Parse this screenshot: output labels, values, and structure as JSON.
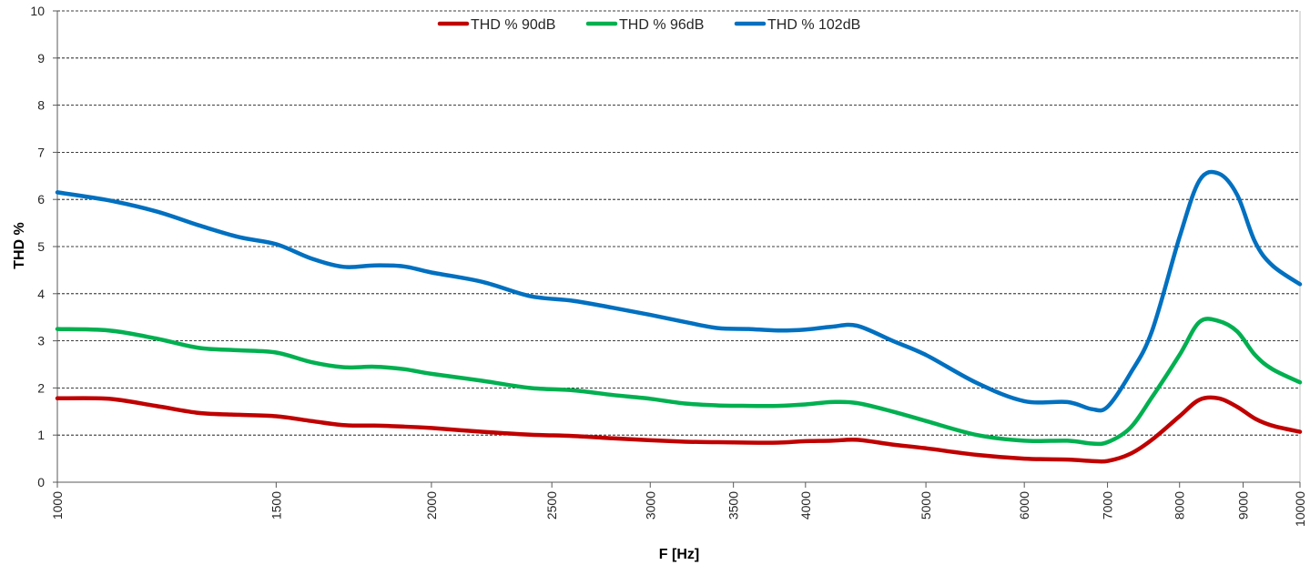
{
  "chart_data": {
    "type": "line",
    "xlabel": "F [Hz]",
    "ylabel": "THD %",
    "xscale": "log",
    "xlim": [
      1000,
      10000
    ],
    "ylim": [
      0,
      10
    ],
    "x_ticks": [
      1000,
      1500,
      2000,
      2500,
      3000,
      3500,
      4000,
      5000,
      6000,
      7000,
      8000,
      9000,
      10000
    ],
    "y_ticks": [
      0,
      1,
      2,
      3,
      4,
      5,
      6,
      7,
      8,
      9,
      10
    ],
    "grid": "horizontal dashed",
    "legend_position": "top-center",
    "series": [
      {
        "name": "THD % 90dB",
        "color": "#C00000",
        "x": [
          1000,
          1100,
          1200,
          1300,
          1400,
          1500,
          1600,
          1700,
          1800,
          1900,
          2000,
          2200,
          2400,
          2600,
          2800,
          3000,
          3200,
          3400,
          3600,
          3800,
          4000,
          4200,
          4400,
          4700,
          5000,
          5500,
          6000,
          6500,
          6800,
          7000,
          7300,
          7600,
          8000,
          8300,
          8600,
          8900,
          9200,
          9500,
          10000
        ],
        "values": [
          1.78,
          1.77,
          1.62,
          1.47,
          1.43,
          1.4,
          1.3,
          1.21,
          1.2,
          1.18,
          1.15,
          1.07,
          1.01,
          0.98,
          0.93,
          0.89,
          0.86,
          0.85,
          0.84,
          0.84,
          0.87,
          0.88,
          0.9,
          0.8,
          0.72,
          0.58,
          0.5,
          0.48,
          0.45,
          0.45,
          0.6,
          0.9,
          1.4,
          1.75,
          1.78,
          1.6,
          1.35,
          1.2,
          1.07
        ]
      },
      {
        "name": "THD % 96dB",
        "color": "#00B050",
        "x": [
          1000,
          1100,
          1200,
          1300,
          1400,
          1500,
          1600,
          1700,
          1800,
          1900,
          2000,
          2200,
          2400,
          2600,
          2800,
          3000,
          3200,
          3400,
          3600,
          3800,
          4000,
          4200,
          4400,
          4700,
          5000,
          5500,
          6000,
          6500,
          6800,
          7000,
          7300,
          7600,
          8000,
          8300,
          8600,
          8900,
          9200,
          9500,
          10000
        ],
        "values": [
          3.25,
          3.22,
          3.05,
          2.85,
          2.8,
          2.75,
          2.55,
          2.44,
          2.45,
          2.4,
          2.3,
          2.15,
          2.0,
          1.95,
          1.85,
          1.77,
          1.67,
          1.63,
          1.62,
          1.62,
          1.65,
          1.7,
          1.68,
          1.5,
          1.3,
          1.0,
          0.88,
          0.88,
          0.82,
          0.85,
          1.15,
          1.8,
          2.7,
          3.4,
          3.42,
          3.2,
          2.7,
          2.4,
          2.12
        ]
      },
      {
        "name": "THD % 102dB",
        "color": "#0070C0",
        "x": [
          1000,
          1100,
          1200,
          1300,
          1400,
          1500,
          1600,
          1700,
          1800,
          1900,
          2000,
          2200,
          2400,
          2600,
          2800,
          3000,
          3200,
          3400,
          3600,
          3800,
          4000,
          4200,
          4400,
          4700,
          5000,
          5500,
          6000,
          6500,
          6800,
          7000,
          7300,
          7600,
          8000,
          8300,
          8600,
          8900,
          9200,
          9500,
          10000
        ],
        "values": [
          6.15,
          5.98,
          5.75,
          5.45,
          5.2,
          5.05,
          4.75,
          4.57,
          4.6,
          4.58,
          4.45,
          4.25,
          3.95,
          3.85,
          3.7,
          3.55,
          3.4,
          3.27,
          3.25,
          3.22,
          3.24,
          3.3,
          3.32,
          3.0,
          2.7,
          2.1,
          1.72,
          1.7,
          1.55,
          1.6,
          2.3,
          3.2,
          5.2,
          6.4,
          6.55,
          6.1,
          5.1,
          4.6,
          4.2
        ]
      }
    ]
  }
}
